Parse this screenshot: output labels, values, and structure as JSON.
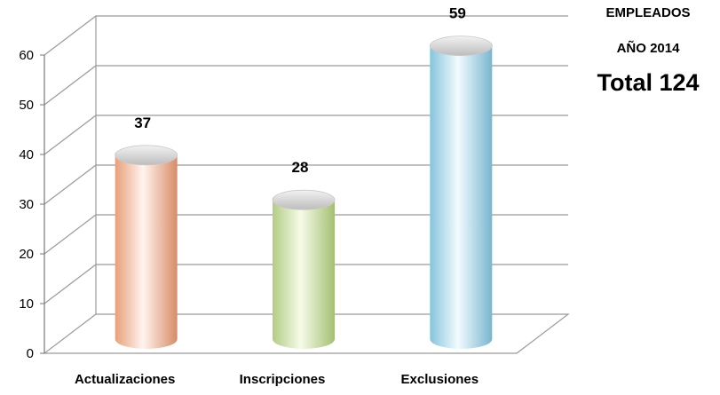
{
  "chart_data": {
    "type": "bar",
    "categories": [
      "Actualizaciones",
      "Inscripciones",
      "Exclusiones"
    ],
    "values": [
      37,
      28,
      59
    ],
    "data_labels": [
      "37",
      "28",
      "59"
    ],
    "title_lines": [
      "EMPLEADOS",
      "AÑO 2014",
      "Total 124"
    ],
    "ylim": [
      0,
      60
    ],
    "yticks": [
      "0",
      "10",
      "20",
      "30",
      "40",
      "50",
      "60"
    ],
    "grid": true,
    "style": "3d-cylinder",
    "colors": [
      "#f0b088",
      "#c4dc96",
      "#8ccce0"
    ]
  }
}
